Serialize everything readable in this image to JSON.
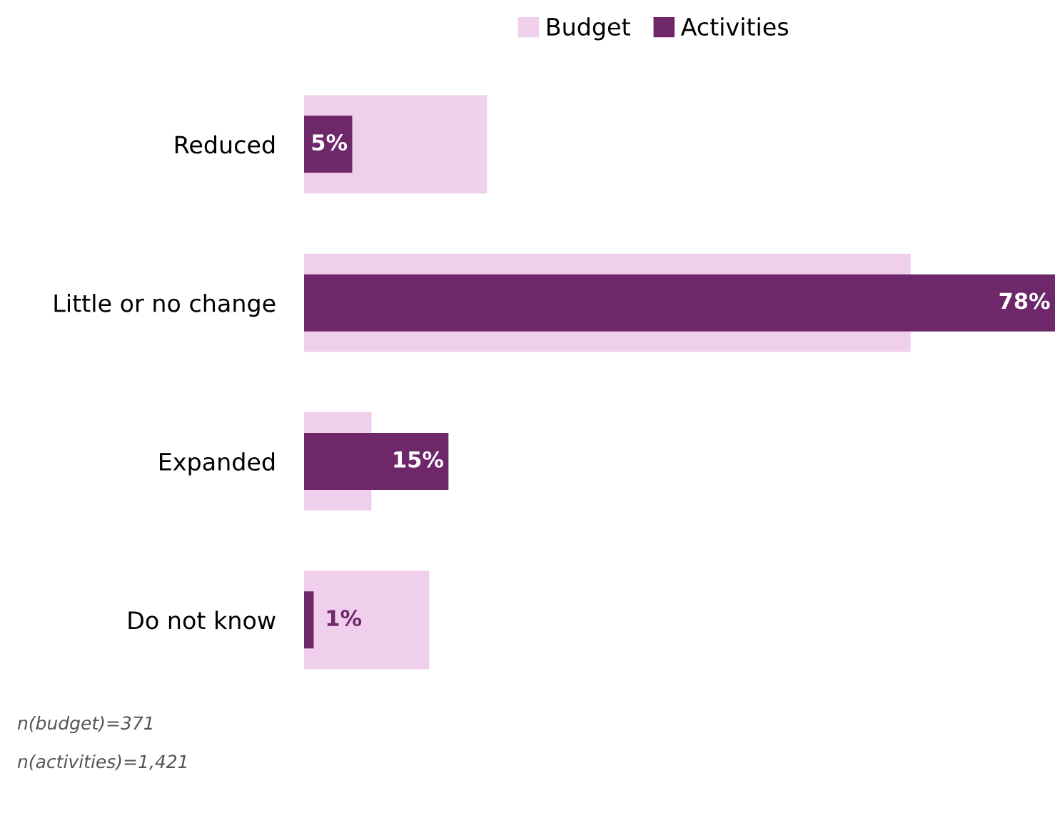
{
  "chart_data": {
    "type": "bar",
    "orientation": "horizontal",
    "categories": [
      "Reduced",
      "Little or no change",
      "Expanded",
      "Do not know"
    ],
    "series": [
      {
        "name": "Budget",
        "color": "#f0cfec",
        "values": [
          19,
          63,
          7,
          13
        ]
      },
      {
        "name": "Activities",
        "color": "#6e2769",
        "values": [
          5,
          78,
          15,
          1
        ],
        "value_labels": [
          "5%",
          "78%",
          "15%",
          "1%"
        ]
      }
    ],
    "legend": "top",
    "annotations": [
      "n(budget)=371",
      "n(activities)=1,421"
    ]
  }
}
